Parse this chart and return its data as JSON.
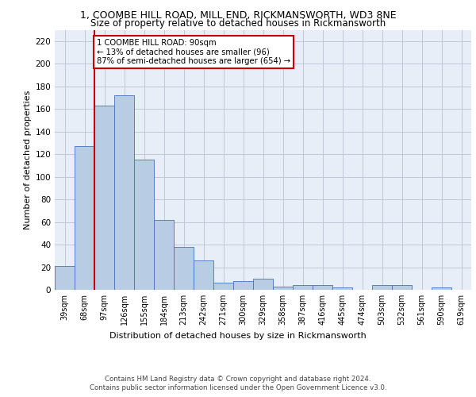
{
  "title1": "1, COOMBE HILL ROAD, MILL END, RICKMANSWORTH, WD3 8NE",
  "title2": "Size of property relative to detached houses in Rickmansworth",
  "xlabel": "Distribution of detached houses by size in Rickmansworth",
  "ylabel": "Number of detached properties",
  "categories": [
    "39sqm",
    "68sqm",
    "97sqm",
    "126sqm",
    "155sqm",
    "184sqm",
    "213sqm",
    "242sqm",
    "271sqm",
    "300sqm",
    "329sqm",
    "358sqm",
    "387sqm",
    "416sqm",
    "445sqm",
    "474sqm",
    "503sqm",
    "532sqm",
    "561sqm",
    "590sqm",
    "619sqm"
  ],
  "values": [
    21,
    127,
    163,
    172,
    115,
    62,
    38,
    26,
    6,
    8,
    10,
    3,
    4,
    4,
    2,
    0,
    4,
    4,
    0,
    2,
    0
  ],
  "bar_color": "#b8cce4",
  "bar_edge_color": "#4472c4",
  "vline_color": "#cc0000",
  "vline_x_index": 2,
  "annotation_text": "1 COOMBE HILL ROAD: 90sqm\n← 13% of detached houses are smaller (96)\n87% of semi-detached houses are larger (654) →",
  "annotation_box_color": "#ffffff",
  "annotation_box_edge": "#cc0000",
  "ylim": [
    0,
    230
  ],
  "yticks": [
    0,
    20,
    40,
    60,
    80,
    100,
    120,
    140,
    160,
    180,
    200,
    220
  ],
  "grid_color": "#c0c8d8",
  "background_color": "#e8eef8",
  "footer1": "Contains HM Land Registry data © Crown copyright and database right 2024.",
  "footer2": "Contains public sector information licensed under the Open Government Licence v3.0."
}
